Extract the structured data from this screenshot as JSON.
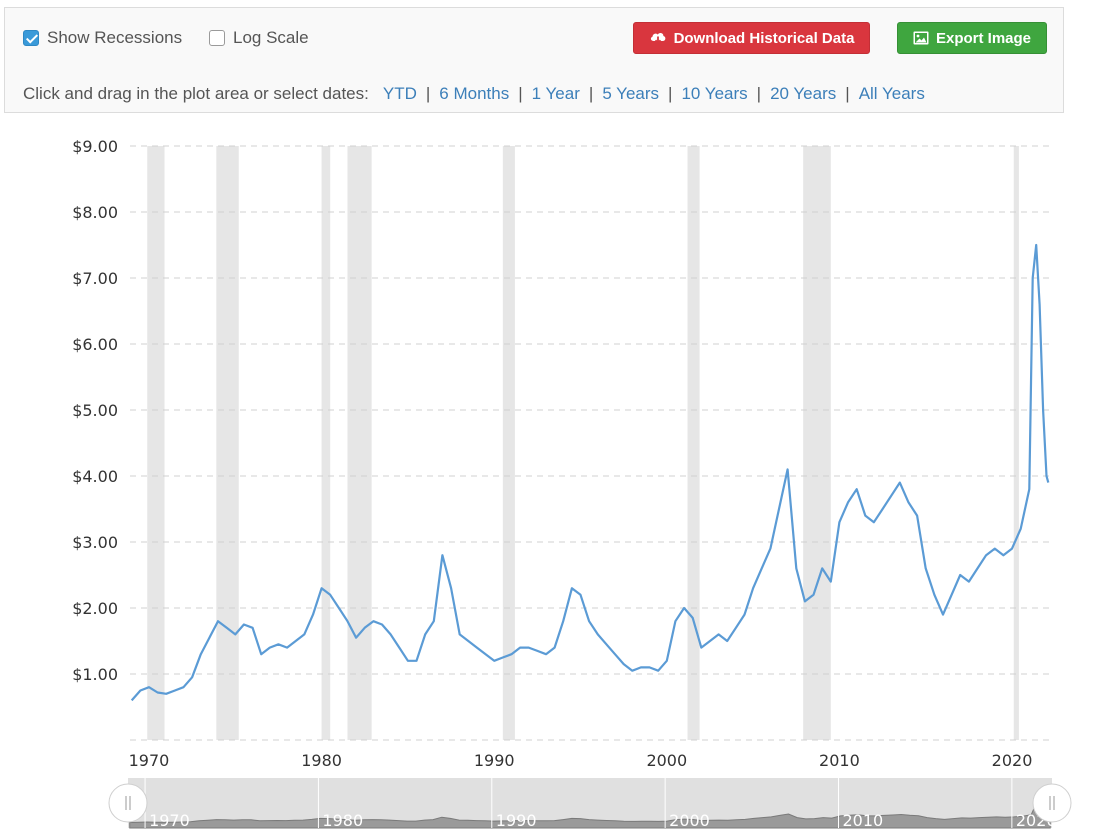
{
  "controls": {
    "show_recessions": {
      "label": "Show Recessions",
      "checked": true
    },
    "log_scale": {
      "label": "Log Scale",
      "checked": false
    },
    "download_label": "Download Historical Data",
    "export_label": "Export Image",
    "range_prompt": "Click and drag in the plot area or select dates:",
    "ranges": [
      "YTD",
      "6 Months",
      "1 Year",
      "5 Years",
      "10 Years",
      "20 Years",
      "All Years"
    ],
    "separator": "|"
  },
  "colors": {
    "line": "#5b9bd5",
    "recession": "#e6e6e6",
    "download_button": "#d9363e",
    "export_button": "#3fa63f",
    "link": "#3c7fb9"
  },
  "chart_data": {
    "type": "line",
    "title": "",
    "xlabel": "",
    "ylabel": "",
    "xlim": [
      1968.9,
      2022.2
    ],
    "ylim": [
      0,
      9
    ],
    "y_tick_labels": [
      "$1.00",
      "$2.00",
      "$3.00",
      "$4.00",
      "$5.00",
      "$6.00",
      "$7.00",
      "$8.00",
      "$9.00"
    ],
    "y_tick_values": [
      1,
      2,
      3,
      4,
      5,
      6,
      7,
      8,
      9
    ],
    "x_tick_labels": [
      "1970",
      "1980",
      "1990",
      "2000",
      "2010",
      "2020"
    ],
    "x_tick_values": [
      1970,
      1980,
      1990,
      2000,
      2010,
      2020
    ],
    "grid": "horizontal dashed",
    "recessions": [
      [
        1969.9,
        1970.9
      ],
      [
        1973.9,
        1975.2
      ],
      [
        1980.0,
        1980.5
      ],
      [
        1981.5,
        1982.9
      ],
      [
        1990.5,
        1991.2
      ],
      [
        2001.2,
        2001.9
      ],
      [
        2007.9,
        2009.5
      ],
      [
        2020.1,
        2020.4
      ]
    ],
    "series": [
      {
        "x": [
          1969.0,
          1969.5,
          1970.0,
          1970.5,
          1971.0,
          1971.5,
          1972.0,
          1972.5,
          1973.0,
          1973.5,
          1974.0,
          1974.5,
          1975.0,
          1975.5,
          1976.0,
          1976.5,
          1977.0,
          1977.5,
          1978.0,
          1978.5,
          1979.0,
          1979.5,
          1980.0,
          1980.5,
          1981.0,
          1981.5,
          1982.0,
          1982.5,
          1983.0,
          1983.5,
          1984.0,
          1984.5,
          1985.0,
          1985.5,
          1986.0,
          1986.5,
          1987.0,
          1987.5,
          1988.0,
          1988.5,
          1989.0,
          1989.5,
          1990.0,
          1990.5,
          1991.0,
          1991.5,
          1992.0,
          1992.5,
          1993.0,
          1993.5,
          1994.0,
          1994.5,
          1995.0,
          1995.5,
          1996.0,
          1996.5,
          1997.0,
          1997.5,
          1998.0,
          1998.5,
          1999.0,
          1999.5,
          2000.0,
          2000.5,
          2001.0,
          2001.5,
          2002.0,
          2002.5,
          2003.0,
          2003.5,
          2004.0,
          2004.5,
          2005.0,
          2005.5,
          2006.0,
          2006.5,
          2007.0,
          2007.5,
          2008.0,
          2008.5,
          2009.0,
          2009.5,
          2010.0,
          2010.5,
          2011.0,
          2011.5,
          2012.0,
          2012.5,
          2013.0,
          2013.5,
          2014.0,
          2014.5,
          2015.0,
          2015.5,
          2016.0,
          2016.5,
          2017.0,
          2017.5,
          2018.0,
          2018.5,
          2019.0,
          2019.5,
          2020.0,
          2020.5,
          2021.0,
          2021.2,
          2021.4,
          2021.6,
          2021.8,
          2022.0,
          2022.1
        ],
        "values": [
          0.6,
          0.75,
          0.8,
          0.72,
          0.7,
          0.75,
          0.8,
          0.95,
          1.3,
          1.55,
          1.8,
          1.7,
          1.6,
          1.75,
          1.7,
          1.3,
          1.4,
          1.45,
          1.4,
          1.5,
          1.6,
          1.9,
          2.3,
          2.2,
          2.0,
          1.8,
          1.55,
          1.7,
          1.8,
          1.75,
          1.6,
          1.4,
          1.2,
          1.2,
          1.6,
          1.8,
          2.8,
          2.3,
          1.6,
          1.5,
          1.4,
          1.3,
          1.2,
          1.25,
          1.3,
          1.4,
          1.4,
          1.35,
          1.3,
          1.4,
          1.8,
          2.3,
          2.2,
          1.8,
          1.6,
          1.45,
          1.3,
          1.15,
          1.05,
          1.1,
          1.1,
          1.05,
          1.2,
          1.8,
          2.0,
          1.85,
          1.4,
          1.5,
          1.6,
          1.5,
          1.7,
          1.9,
          2.3,
          2.6,
          2.9,
          3.5,
          4.1,
          2.6,
          2.1,
          2.2,
          2.6,
          2.4,
          3.3,
          3.6,
          3.8,
          3.4,
          3.3,
          3.5,
          3.7,
          3.9,
          3.6,
          3.4,
          2.6,
          2.2,
          1.9,
          2.2,
          2.5,
          2.4,
          2.6,
          2.8,
          2.9,
          2.8,
          2.9,
          3.2,
          3.8,
          7.0,
          7.5,
          6.6,
          5.0,
          4.0,
          3.9
        ]
      }
    ]
  }
}
